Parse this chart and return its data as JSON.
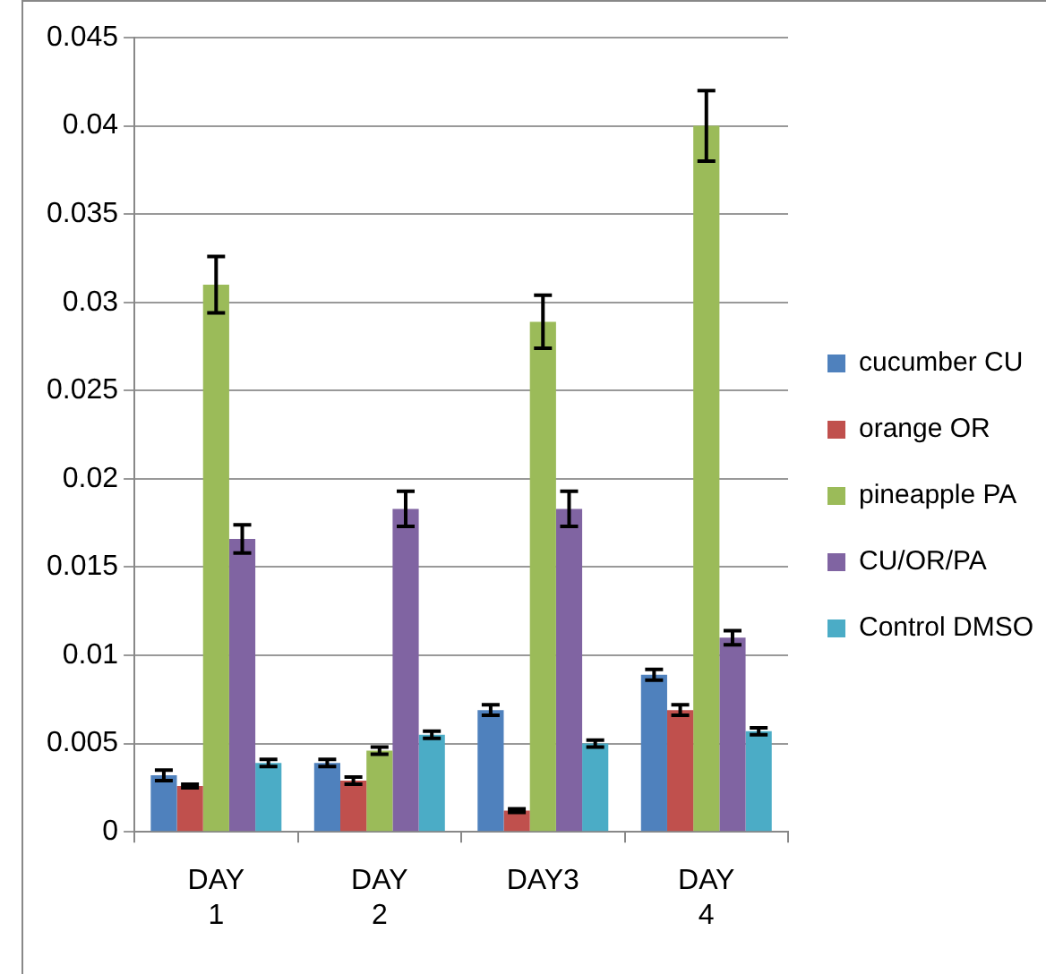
{
  "chart_data": {
    "type": "bar",
    "categories": [
      "DAY 1",
      "DAY 2",
      "DAY3",
      "DAY 4"
    ],
    "series": [
      {
        "name": "cucumber CU",
        "color": "#4f81bd",
        "values": [
          0.0032,
          0.0039,
          0.0069,
          0.0089
        ],
        "errors": [
          0.0003,
          0.0002,
          0.0003,
          0.0003
        ]
      },
      {
        "name": "orange OR",
        "color": "#c0504d",
        "values": [
          0.0026,
          0.0029,
          0.0012,
          0.0069
        ],
        "errors": [
          0.0001,
          0.0002,
          0.0001,
          0.0003
        ]
      },
      {
        "name": "pineapple PA",
        "color": "#9bbb59",
        "values": [
          0.031,
          0.0046,
          0.0289,
          0.04
        ],
        "errors": [
          0.0016,
          0.0002,
          0.0015,
          0.002
        ]
      },
      {
        "name": "CU/OR/PA",
        "color": "#8064a2",
        "values": [
          0.0166,
          0.0183,
          0.0183,
          0.011
        ],
        "errors": [
          0.0008,
          0.001,
          0.001,
          0.0004
        ]
      },
      {
        "name": "Control DMSO",
        "color": "#4bacc6",
        "values": [
          0.0039,
          0.0055,
          0.005,
          0.0057
        ],
        "errors": [
          0.0002,
          0.0002,
          0.0002,
          0.0002
        ]
      }
    ],
    "ylim": [
      0,
      0.045
    ],
    "yticks": [
      0,
      0.005,
      0.01,
      0.015,
      0.02,
      0.025,
      0.03,
      0.035,
      0.04,
      0.045
    ],
    "grid": "y",
    "legend": "right"
  }
}
